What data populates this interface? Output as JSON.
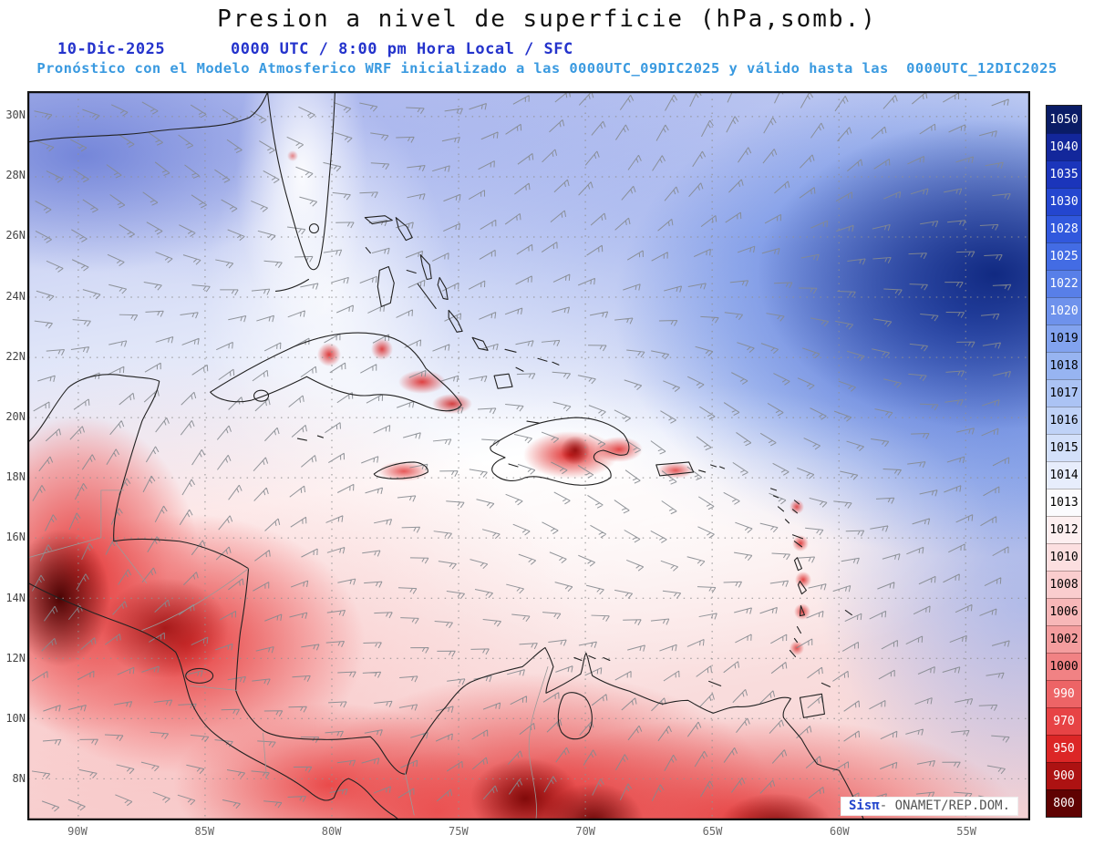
{
  "header": {
    "title": "Presion a nivel de superficie (hPa,somb.)",
    "date": "10-Dic-2025",
    "time_info": "0000 UTC / 8:00 pm Hora Local / SFC",
    "forecast_info": "Pronóstico con el Modelo Atmosferico WRF inicializado a las 0000UTC_09DIC2025 y válido hasta las  0000UTC_12DIC2025"
  },
  "map": {
    "lat_labels": [
      "30N",
      "28N",
      "26N",
      "24N",
      "22N",
      "20N",
      "18N",
      "16N",
      "14N",
      "12N",
      "10N",
      "8N"
    ],
    "lon_labels": [
      "90W",
      "85W",
      "80W",
      "75W",
      "70W",
      "65W",
      "60W",
      "55W"
    ],
    "graticule_color": "#909090",
    "wind_barb_color": "#85898f",
    "coastline_color": "#222222"
  },
  "colorbar": {
    "unit": "hPa",
    "levels": [
      {
        "value": "1050",
        "color": "#0a1c66"
      },
      {
        "value": "1040",
        "color": "#13279b"
      },
      {
        "value": "1035",
        "color": "#1b35bb"
      },
      {
        "value": "1030",
        "color": "#2446cf"
      },
      {
        "value": "1028",
        "color": "#3158dd"
      },
      {
        "value": "1025",
        "color": "#436ce4"
      },
      {
        "value": "1022",
        "color": "#587fe8"
      },
      {
        "value": "1020",
        "color": "#6e92ec"
      },
      {
        "value": "1019",
        "color": "#82a3ef"
      },
      {
        "value": "1018",
        "color": "#97b4f1"
      },
      {
        "value": "1017",
        "color": "#abc3f4"
      },
      {
        "value": "1016",
        "color": "#bfd2f7"
      },
      {
        "value": "1015",
        "color": "#d3e0fa"
      },
      {
        "value": "1014",
        "color": "#e7edfc"
      },
      {
        "value": "1013",
        "color": "#fbfbfe"
      },
      {
        "value": "1012",
        "color": "#fdeff0"
      },
      {
        "value": "1010",
        "color": "#fcdfe0"
      },
      {
        "value": "1008",
        "color": "#facdce"
      },
      {
        "value": "1006",
        "color": "#f7b7b8"
      },
      {
        "value": "1002",
        "color": "#f49d9e"
      },
      {
        "value": "1000",
        "color": "#f18284"
      },
      {
        "value": "990",
        "color": "#ed6466"
      },
      {
        "value": "970",
        "color": "#e74345"
      },
      {
        "value": "950",
        "color": "#dc2626"
      },
      {
        "value": "900",
        "color": "#ad1212"
      },
      {
        "value": "800",
        "color": "#5f0202"
      }
    ]
  },
  "watermark": {
    "brand": "Sisπ",
    "rest": "- ONAMET/REP.DOM."
  },
  "chart_data": {
    "type": "heatmap",
    "title": "Presion a nivel de superficie (hPa,somb.)",
    "field": "surface pressure shading with wind barbs over the Caribbean",
    "x_ticks": [
      "90W",
      "85W",
      "80W",
      "75W",
      "70W",
      "65W",
      "60W",
      "55W"
    ],
    "y_ticks": [
      "30N",
      "28N",
      "26N",
      "24N",
      "22N",
      "20N",
      "18N",
      "16N",
      "14N",
      "12N",
      "10N",
      "8N"
    ],
    "colorbar_levels_hPa": [
      1050,
      1040,
      1035,
      1030,
      1028,
      1025,
      1022,
      1020,
      1019,
      1018,
      1017,
      1016,
      1015,
      1014,
      1013,
      1012,
      1010,
      1008,
      1006,
      1002,
      1000,
      990,
      970,
      950,
      900,
      800
    ],
    "pattern": "high pressure (blue, ~1018-1030 hPa) over NW Atlantic and Gulf, near-normal (white, ~1013-1015) across central Caribbean, low pressure (red, <1010) over Central America, Colombia and Venezuela terrain"
  }
}
